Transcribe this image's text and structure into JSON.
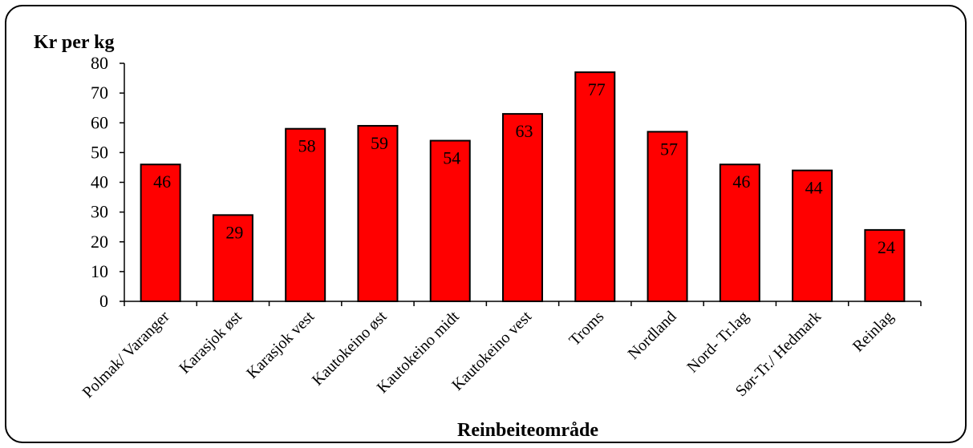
{
  "chart_data": {
    "type": "bar",
    "ylabel": "Kr per kg",
    "xlabel": "Reinbeiteområde",
    "categories": [
      "Polmak/ Varanger",
      "Karasjok øst",
      "Karasjok vest",
      "Kautokeino øst",
      "Kautokeino midt",
      "Kautokeino vest",
      "Troms",
      "Nordland",
      "Nord- Tr.lag",
      "Sør-Tr./ Hedmark",
      "Reinlag"
    ],
    "values": [
      46,
      29,
      58,
      59,
      54,
      63,
      77,
      57,
      46,
      44,
      24
    ],
    "ylim": [
      0,
      80
    ],
    "yticks": [
      0,
      10,
      20,
      30,
      40,
      50,
      60,
      70,
      80
    ],
    "grid": false,
    "legend": "none",
    "bar_color": "#ff0000",
    "border_color": "#000000"
  }
}
